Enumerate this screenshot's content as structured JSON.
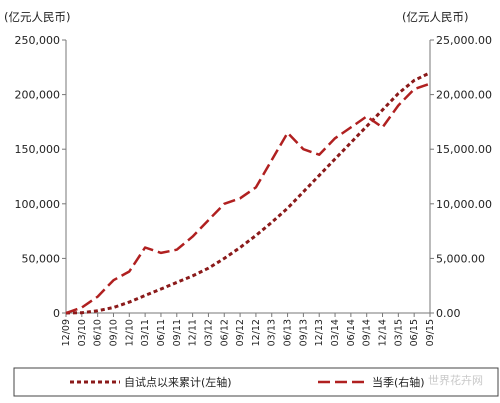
{
  "chart_data": {
    "type": "line",
    "left_unit": "(亿元人民币)",
    "right_unit": "(亿元人民币)",
    "x": [
      "12/09",
      "03/10",
      "06/10",
      "09/10",
      "12/10",
      "03/11",
      "06/11",
      "09/11",
      "12/11",
      "03/12",
      "06/12",
      "09/12",
      "12/12",
      "03/13",
      "06/13",
      "09/13",
      "12/13",
      "03/14",
      "06/14",
      "09/14",
      "12/14",
      "03/15",
      "06/15",
      "09/15"
    ],
    "left_axis": {
      "ylim": [
        0,
        250000
      ],
      "ticks": [
        "0",
        "50,000",
        "100,000",
        "150,000",
        "200,000",
        "250,000"
      ]
    },
    "right_axis": {
      "ylim": [
        0,
        25000
      ],
      "ticks": [
        "0.00",
        "5,000.00",
        "10,000.00",
        "15,000.00",
        "20,000.00",
        "25,000.00"
      ]
    },
    "series": [
      {
        "name": "自试点以来累计(左轴)",
        "axis": "left",
        "color": "#8b1a1a",
        "style": "dotted",
        "values": [
          0,
          300,
          2000,
          5000,
          10000,
          16000,
          22000,
          28000,
          34000,
          41000,
          50000,
          60000,
          71000,
          83000,
          96000,
          111000,
          126000,
          141000,
          156000,
          171000,
          186000,
          201000,
          213000,
          220000
        ]
      },
      {
        "name": "当季(右轴)",
        "axis": "right",
        "color": "#b02020",
        "style": "dashed",
        "values": [
          0,
          500,
          1500,
          3000,
          3800,
          6000,
          5500,
          5800,
          7000,
          8500,
          10000,
          10500,
          11500,
          14000,
          16500,
          15000,
          14500,
          16000,
          17000,
          18000,
          17000,
          19000,
          20500,
          21000
        ]
      }
    ],
    "grid": false,
    "legend_position": "bottom"
  },
  "watermark": "世界花卉网"
}
